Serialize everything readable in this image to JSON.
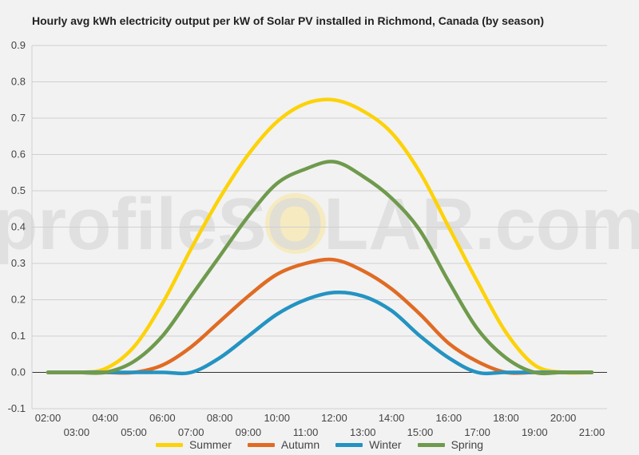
{
  "chart_data": {
    "type": "line",
    "title": "Hourly avg kWh electricity output per kW of Solar PV installed in Richmond, Canada (by season)",
    "xlabel": "",
    "ylabel": "",
    "watermark": "profileSOLAR.com",
    "x": [
      "02:00",
      "03:00",
      "04:00",
      "05:00",
      "06:00",
      "07:00",
      "08:00",
      "09:00",
      "10:00",
      "11:00",
      "12:00",
      "13:00",
      "14:00",
      "15:00",
      "16:00",
      "17:00",
      "18:00",
      "19:00",
      "20:00",
      "21:00"
    ],
    "ylim": [
      -0.1,
      0.9
    ],
    "yticks": [
      "0.9",
      "0.8",
      "0.7",
      "0.6",
      "0.5",
      "0.4",
      "0.3",
      "0.2",
      "0.1",
      "0.0",
      "-0.1"
    ],
    "grid": true,
    "legend_position": "bottom",
    "series": [
      {
        "name": "Summer",
        "color": "#fcd20a",
        "values": [
          0,
          0,
          0.01,
          0.07,
          0.19,
          0.34,
          0.48,
          0.6,
          0.69,
          0.74,
          0.75,
          0.72,
          0.66,
          0.55,
          0.4,
          0.25,
          0.11,
          0.02,
          0,
          0
        ]
      },
      {
        "name": "Autumn",
        "color": "#e06b24",
        "values": [
          0,
          0,
          0,
          0,
          0.02,
          0.07,
          0.14,
          0.21,
          0.27,
          0.3,
          0.31,
          0.28,
          0.23,
          0.16,
          0.08,
          0.03,
          0,
          0,
          0,
          0
        ]
      },
      {
        "name": "Winter",
        "color": "#2493c2",
        "values": [
          0,
          0,
          0,
          0,
          0,
          0,
          0.04,
          0.1,
          0.16,
          0.2,
          0.22,
          0.21,
          0.17,
          0.1,
          0.04,
          0,
          0,
          0,
          0,
          0
        ]
      },
      {
        "name": "Spring",
        "color": "#6f9a4d",
        "values": [
          0,
          0,
          0,
          0.03,
          0.1,
          0.21,
          0.32,
          0.43,
          0.52,
          0.56,
          0.58,
          0.54,
          0.48,
          0.39,
          0.25,
          0.12,
          0.04,
          0,
          0,
          0
        ]
      }
    ]
  }
}
